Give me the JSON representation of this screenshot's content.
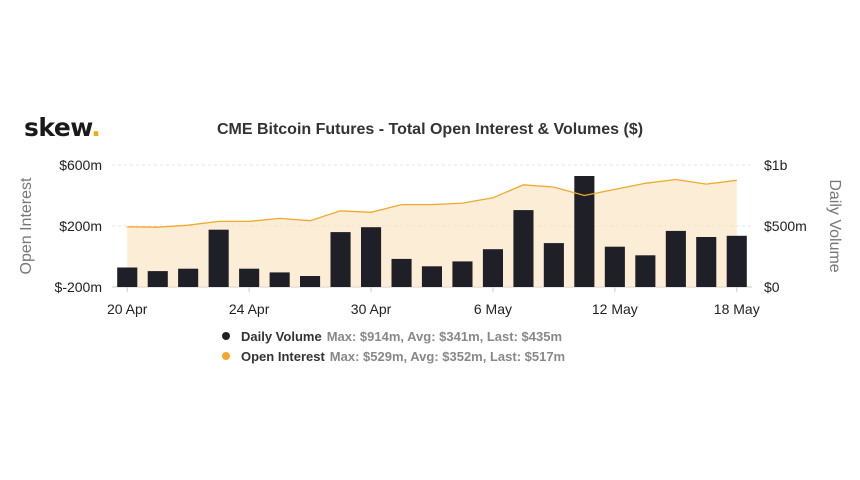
{
  "brand": {
    "name": "skew",
    "dot": "."
  },
  "colors": {
    "volume": "#1f1f27",
    "open_interest": "#f0a92b",
    "oi_fill": "#fbe7c4",
    "grid": "#e6e6e6"
  },
  "chart_data": {
    "type": "bar",
    "title": "CME Bitcoin Futures - Total Open Interest & Volumes ($)",
    "left_axis": {
      "label": "Open Interest",
      "ticks": [
        "$600m",
        "$200m",
        "$-200m"
      ],
      "range": [
        -200,
        600
      ]
    },
    "right_axis": {
      "label": "Daily Volume",
      "ticks": [
        "$1b",
        "$500m",
        "$0"
      ],
      "range": [
        0,
        1000
      ]
    },
    "x_ticks": [
      "20 Apr",
      "24 Apr",
      "30 Apr",
      "6 May",
      "12 May",
      "18 May"
    ],
    "x_tick_index": [
      0,
      4,
      8,
      12,
      16,
      20
    ],
    "grid": true,
    "series": [
      {
        "name": "Daily Volume",
        "type": "bar",
        "axis": "right",
        "values": [
          160,
          130,
          150,
          470,
          150,
          120,
          90,
          450,
          490,
          230,
          170,
          210,
          310,
          630,
          360,
          910,
          330,
          260,
          460,
          410,
          420
        ],
        "stats": "Max: $914m, Avg: $341m, Last: $435m"
      },
      {
        "name": "Open Interest",
        "type": "area",
        "axis": "left",
        "values": [
          195,
          192,
          205,
          230,
          230,
          250,
          235,
          300,
          290,
          340,
          340,
          350,
          385,
          470,
          455,
          400,
          440,
          480,
          505,
          475,
          500
        ],
        "stats": "Max: $529m, Avg: $352m, Last: $517m"
      }
    ]
  }
}
